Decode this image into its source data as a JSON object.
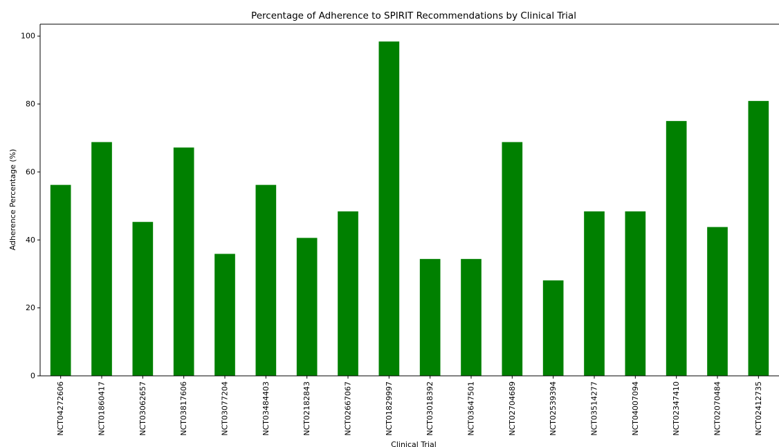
{
  "chart_data": {
    "type": "bar",
    "title": "Percentage of Adherence to SPIRIT Recommendations by Clinical Trial",
    "xlabel": "Clinical Trial",
    "ylabel": "Adherence Percentage (%)",
    "ylim": [
      0,
      103.5
    ],
    "yticks": [
      "0",
      "20",
      "40",
      "60",
      "80",
      "100"
    ],
    "grid": false,
    "bar_color": "#008000",
    "categories": [
      "NCT04272606",
      "NCT01860417",
      "NCT03062657",
      "NCT03817606",
      "NCT03077204",
      "NCT03484403",
      "NCT02182843",
      "NCT02667067",
      "NCT01829997",
      "NCT03018392",
      "NCT03647501",
      "NCT02704689",
      "NCT02539394",
      "NCT03514277",
      "NCT04007094",
      "NCT02347410",
      "NCT02070484",
      "NCT02412735"
    ],
    "values": [
      56.2,
      68.8,
      45.3,
      67.2,
      35.9,
      56.2,
      40.6,
      48.4,
      98.4,
      34.4,
      34.4,
      68.8,
      28.1,
      48.4,
      48.4,
      75.0,
      43.8,
      80.9
    ]
  }
}
